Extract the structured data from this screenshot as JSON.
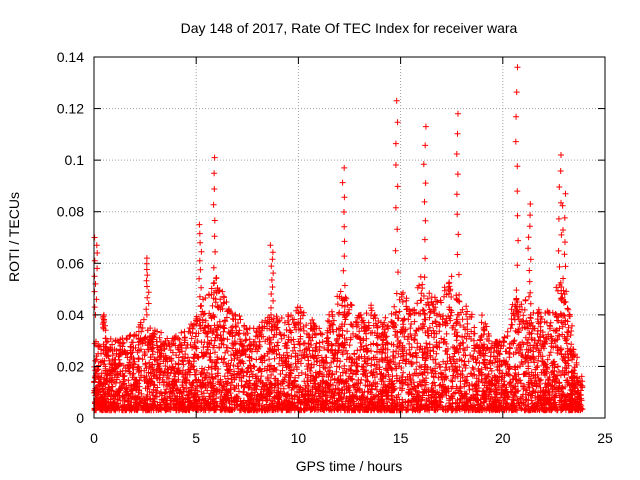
{
  "chart_data": {
    "type": "scatter",
    "title": "Day 148 of 2017, Rate Of TEC Index for receiver wara",
    "xlabel": "GPS time / hours",
    "ylabel": "ROTI / TECUs",
    "xlim": [
      0,
      25
    ],
    "ylim": [
      0,
      0.14
    ],
    "x_ticks": [
      "0",
      "5",
      "10",
      "15",
      "20",
      "25"
    ],
    "y_ticks": [
      "0",
      "0.02",
      "0.04",
      "0.06",
      "0.08",
      "0.1",
      "0.12",
      "0.14"
    ],
    "grid": true,
    "marker": "+",
    "color": "#ff0000",
    "points_sample": [
      [
        0.1,
        0.07
      ],
      [
        0.5,
        0.034
      ],
      [
        2.6,
        0.062
      ],
      [
        5.2,
        0.075
      ],
      [
        5.9,
        0.101
      ],
      [
        8.7,
        0.067
      ],
      [
        12.2,
        0.097
      ],
      [
        14.8,
        0.123
      ],
      [
        16.2,
        0.113
      ],
      [
        17.8,
        0.118
      ],
      [
        20.7,
        0.136
      ],
      [
        22.8,
        0.102
      ],
      [
        21.3,
        0.083
      ],
      [
        23.0,
        0.087
      ]
    ],
    "envelope": [
      [
        0.0,
        0.03
      ],
      [
        0.5,
        0.032
      ],
      [
        1.0,
        0.03
      ],
      [
        1.5,
        0.032
      ],
      [
        2.0,
        0.035
      ],
      [
        2.5,
        0.04
      ],
      [
        3.0,
        0.035
      ],
      [
        3.5,
        0.032
      ],
      [
        4.0,
        0.032
      ],
      [
        4.5,
        0.034
      ],
      [
        5.0,
        0.04
      ],
      [
        5.5,
        0.05
      ],
      [
        6.0,
        0.055
      ],
      [
        6.5,
        0.045
      ],
      [
        7.0,
        0.04
      ],
      [
        7.5,
        0.038
      ],
      [
        8.0,
        0.035
      ],
      [
        8.5,
        0.04
      ],
      [
        9.0,
        0.042
      ],
      [
        9.5,
        0.04
      ],
      [
        10.0,
        0.045
      ],
      [
        10.5,
        0.04
      ],
      [
        11.0,
        0.035
      ],
      [
        11.5,
        0.04
      ],
      [
        12.0,
        0.05
      ],
      [
        12.5,
        0.045
      ],
      [
        13.0,
        0.04
      ],
      [
        13.5,
        0.045
      ],
      [
        14.0,
        0.038
      ],
      [
        14.5,
        0.04
      ],
      [
        15.0,
        0.05
      ],
      [
        15.5,
        0.045
      ],
      [
        16.0,
        0.055
      ],
      [
        16.5,
        0.048
      ],
      [
        17.0,
        0.05
      ],
      [
        17.5,
        0.055
      ],
      [
        18.0,
        0.045
      ],
      [
        18.5,
        0.042
      ],
      [
        19.0,
        0.04
      ],
      [
        19.5,
        0.03
      ],
      [
        20.0,
        0.03
      ],
      [
        20.5,
        0.045
      ],
      [
        21.0,
        0.05
      ],
      [
        21.5,
        0.045
      ],
      [
        22.0,
        0.04
      ],
      [
        22.5,
        0.05
      ],
      [
        23.0,
        0.055
      ],
      [
        23.5,
        0.03
      ],
      [
        23.9,
        0.015
      ]
    ]
  }
}
